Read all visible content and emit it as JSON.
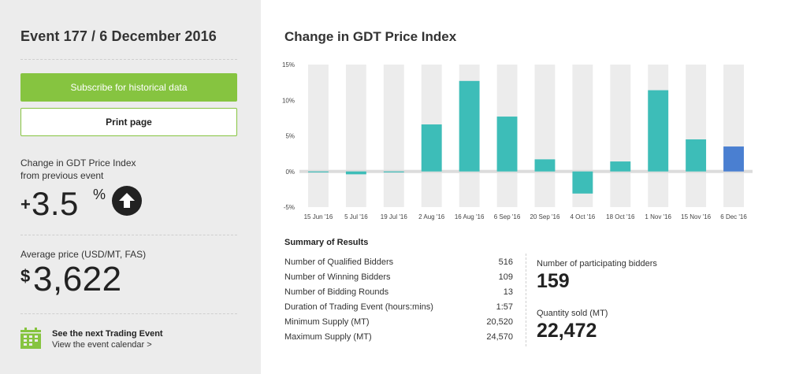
{
  "event": {
    "title": "Event 177 / 6 December 2016",
    "subscribe_label": "Subscribe for historical data",
    "print_label": "Print page"
  },
  "change": {
    "label_line1": "Change in GDT Price Index",
    "label_line2": "from previous event",
    "sign": "+",
    "value": "3.5",
    "unit": "%",
    "direction_icon": "arrow-up-circle-icon"
  },
  "average": {
    "label": "Average price (USD/MT, FAS)",
    "currency": "$",
    "value": "3,622"
  },
  "next_event": {
    "icon": "calendar-icon",
    "title": "See the next Trading Event",
    "link": "View the event calendar >"
  },
  "chart_section": {
    "title": "Change in GDT Price Index"
  },
  "chart_data": {
    "type": "bar",
    "title": "Change in GDT Price Index",
    "xlabel": "",
    "ylabel": "",
    "ylim": [
      -5,
      15
    ],
    "yticks": [
      "15%",
      "10%",
      "5%",
      "0%",
      "-5%"
    ],
    "ytick_values": [
      15,
      10,
      5,
      0,
      -5
    ],
    "categories": [
      "15 Jun '16",
      "5 Jul '16",
      "19 Jul '16",
      "2 Aug '16",
      "16 Aug '16",
      "6 Sep '16",
      "20 Sep '16",
      "4 Oct '16",
      "18 Oct '16",
      "1 Nov '16",
      "15 Nov '16",
      "6 Dec '16"
    ],
    "values": [
      0.0,
      -0.4,
      -0.1,
      6.6,
      12.7,
      7.7,
      1.7,
      -3.1,
      1.4,
      11.4,
      4.5,
      3.5
    ],
    "colors": {
      "bar": "#3dbdb8",
      "highlight": "#4a7fd1",
      "stripe": "#ececec",
      "zero_band": "#dcdcdc"
    },
    "grid": false
  },
  "summary": {
    "title": "Summary of Results",
    "rows": [
      {
        "label": "Number of Qualified Bidders",
        "value": "516"
      },
      {
        "label": "Number of Winning Bidders",
        "value": "109"
      },
      {
        "label": "Number of Bidding Rounds",
        "value": "13"
      },
      {
        "label": "Duration of Trading Event (hours:mins)",
        "value": "1:57"
      },
      {
        "label": "Minimum Supply (MT)",
        "value": "20,520"
      },
      {
        "label": "Maximum Supply (MT)",
        "value": "24,570"
      }
    ],
    "participating_label": "Number of participating bidders",
    "participating_value": "159",
    "quantity_label": "Quantity sold (MT)",
    "quantity_value": "22,472"
  },
  "colors": {
    "accent_green": "#86c440",
    "panel_bg": "#ececec"
  }
}
